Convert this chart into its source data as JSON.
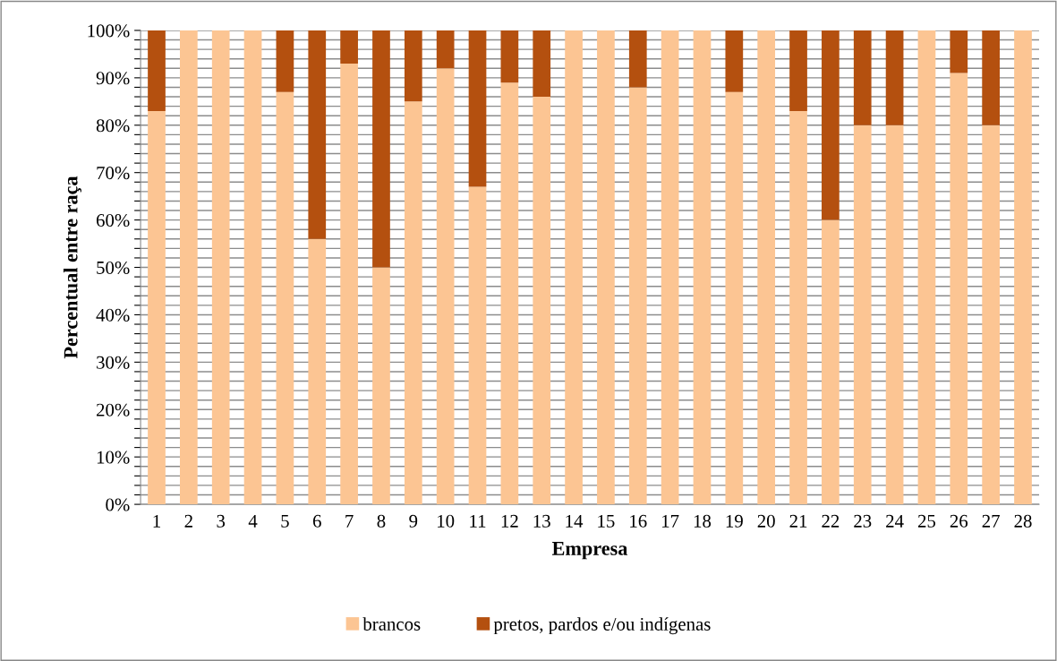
{
  "chart_data": {
    "type": "bar",
    "stacked": true,
    "xlabel": "Empresa",
    "ylabel": "Percentual entre raça",
    "categories": [
      "1",
      "2",
      "3",
      "4",
      "5",
      "6",
      "7",
      "8",
      "9",
      "10",
      "11",
      "12",
      "13",
      "14",
      "15",
      "16",
      "17",
      "18",
      "19",
      "20",
      "21",
      "22",
      "23",
      "24",
      "25",
      "26",
      "27",
      "28"
    ],
    "series": [
      {
        "name": "brancos",
        "color": "#fcc593",
        "values": [
          83,
          100,
          100,
          100,
          87,
          56,
          93,
          50,
          85,
          92,
          67,
          89,
          86,
          100,
          100,
          88,
          100,
          100,
          87,
          100,
          83,
          60,
          80,
          80,
          100,
          91,
          80,
          100
        ]
      },
      {
        "name": "pretos, pardos e/ou indígenas",
        "color": "#b4500f",
        "values": [
          17,
          0,
          0,
          0,
          13,
          44,
          7,
          50,
          15,
          8,
          33,
          11,
          14,
          0,
          0,
          12,
          0,
          0,
          13,
          0,
          17,
          40,
          20,
          20,
          0,
          9,
          20,
          0
        ]
      }
    ],
    "ylim": [
      0,
      100
    ],
    "yticks": [
      {
        "value": 0,
        "label": "0%"
      },
      {
        "value": 2,
        "label": null
      },
      {
        "value": 4,
        "label": null
      },
      {
        "value": 6,
        "label": null
      },
      {
        "value": 8,
        "label": null
      },
      {
        "value": 10,
        "label": "10%"
      },
      {
        "value": 12,
        "label": null
      },
      {
        "value": 14,
        "label": null
      },
      {
        "value": 16,
        "label": null
      },
      {
        "value": 18,
        "label": null
      },
      {
        "value": 20,
        "label": "20%"
      },
      {
        "value": 22,
        "label": null
      },
      {
        "value": 24,
        "label": null
      },
      {
        "value": 26,
        "label": null
      },
      {
        "value": 28,
        "label": null
      },
      {
        "value": 30,
        "label": "30%"
      },
      {
        "value": 32,
        "label": null
      },
      {
        "value": 34,
        "label": null
      },
      {
        "value": 36,
        "label": null
      },
      {
        "value": 38,
        "label": null
      },
      {
        "value": 40,
        "label": "40%"
      },
      {
        "value": 42,
        "label": null
      },
      {
        "value": 44,
        "label": null
      },
      {
        "value": 46,
        "label": null
      },
      {
        "value": 48,
        "label": null
      },
      {
        "value": 50,
        "label": "50%"
      },
      {
        "value": 52,
        "label": null
      },
      {
        "value": 54,
        "label": null
      },
      {
        "value": 56,
        "label": null
      },
      {
        "value": 58,
        "label": null
      },
      {
        "value": 60,
        "label": "60%"
      },
      {
        "value": 62,
        "label": null
      },
      {
        "value": 64,
        "label": null
      },
      {
        "value": 66,
        "label": null
      },
      {
        "value": 68,
        "label": null
      },
      {
        "value": 70,
        "label": "70%"
      },
      {
        "value": 72,
        "label": null
      },
      {
        "value": 74,
        "label": null
      },
      {
        "value": 76,
        "label": null
      },
      {
        "value": 78,
        "label": null
      },
      {
        "value": 80,
        "label": "80%"
      },
      {
        "value": 82,
        "label": null
      },
      {
        "value": 84,
        "label": null
      },
      {
        "value": 86,
        "label": null
      },
      {
        "value": 88,
        "label": null
      },
      {
        "value": 90,
        "label": "90%"
      },
      {
        "value": 92,
        "label": null
      },
      {
        "value": 94,
        "label": null
      },
      {
        "value": 96,
        "label": null
      },
      {
        "value": 98,
        "label": null
      },
      {
        "value": 100,
        "label": "100%"
      }
    ],
    "grid": "y",
    "legend": "bottom"
  }
}
